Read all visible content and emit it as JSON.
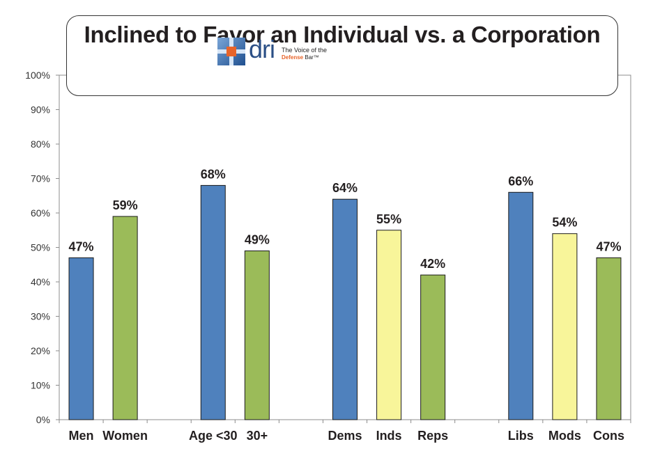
{
  "chart_data": {
    "type": "bar",
    "title": "Inclined to Favor an Individual vs. a Corporation",
    "ylim": [
      0,
      100
    ],
    "yticks": [
      "0%",
      "10%",
      "20%",
      "30%",
      "40%",
      "50%",
      "60%",
      "70%",
      "80%",
      "90%",
      "100%"
    ],
    "grid": false,
    "groups": [
      {
        "categories": [
          "Men",
          "Women"
        ],
        "values": [
          47,
          59
        ],
        "labels": [
          "47%",
          "59%"
        ],
        "colors": [
          "#4f81bd",
          "#9bbb59"
        ]
      },
      {
        "categories": [
          "Age <30",
          "30+"
        ],
        "values": [
          68,
          49
        ],
        "labels": [
          "68%",
          "49%"
        ],
        "colors": [
          "#4f81bd",
          "#9bbb59"
        ]
      },
      {
        "categories": [
          "Dems",
          "Inds",
          "Reps"
        ],
        "values": [
          64,
          55,
          42
        ],
        "labels": [
          "64%",
          "55%",
          "42%"
        ],
        "colors": [
          "#4f81bd",
          "#f8f59a",
          "#9bbb59"
        ]
      },
      {
        "categories": [
          "Libs",
          "Mods",
          "Cons"
        ],
        "values": [
          66,
          54,
          47
        ],
        "labels": [
          "66%",
          "54%",
          "47%"
        ],
        "colors": [
          "#4f81bd",
          "#f8f59a",
          "#9bbb59"
        ]
      }
    ]
  },
  "logo": {
    "brand": "dri",
    "tagline_1": "The Voice of the",
    "tagline_2_accent": "Defense",
    "tagline_2_rest": "Bar™"
  }
}
